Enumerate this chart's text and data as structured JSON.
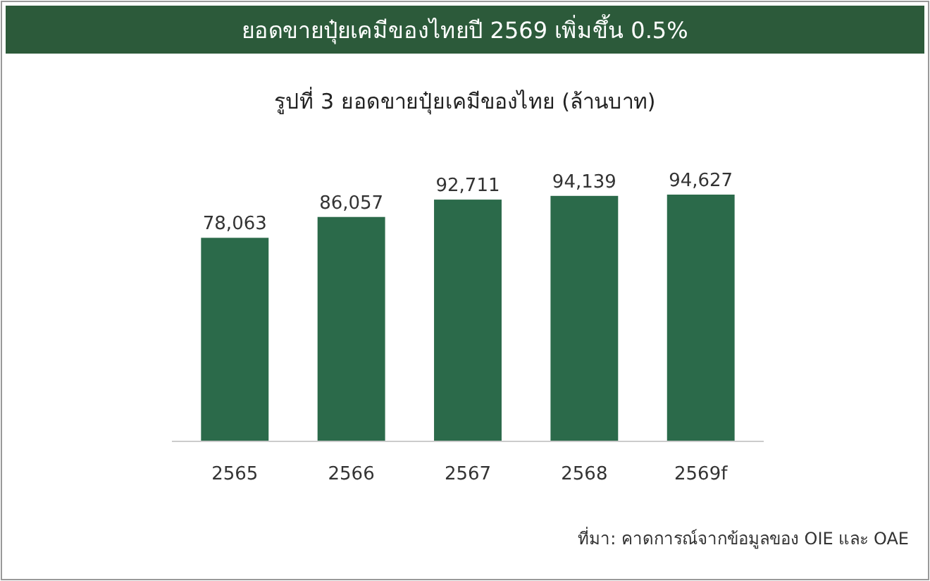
{
  "chart_data": {
    "type": "bar",
    "title": "ยอดขายปุ๋ยเคมีของไทยปี 2569 เพิ่มขึ้น 0.5%",
    "subtitle": "รูปที่ 3 ยอดขายปุ๋ยเคมีของไทย (ล้านบาท)",
    "categories": [
      "2565",
      "2566",
      "2567",
      "2568",
      "2569f"
    ],
    "values": [
      78063,
      86057,
      92711,
      94139,
      94627
    ],
    "value_labels": [
      "78,063",
      "86,057",
      "92,711",
      "94,139",
      "94,627"
    ],
    "color": "#2b6a4a",
    "tick_labels": "x",
    "annotations": [
      "ที่มา: คาดการณ์จากข้อมูลของ OIE และ OAE"
    ]
  }
}
